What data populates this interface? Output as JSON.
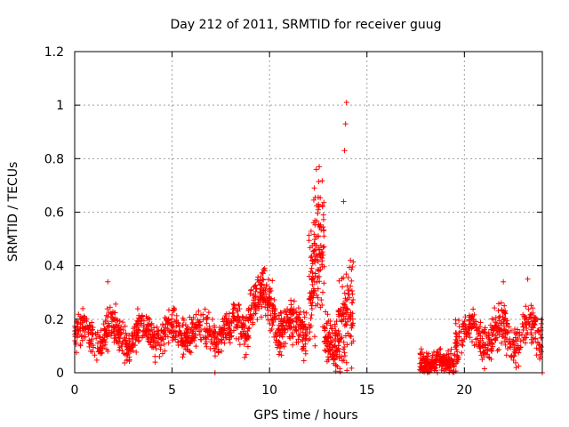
{
  "chart_data": {
    "type": "scatter",
    "title": "Day 212 of 2011, SRMTID for receiver guug",
    "xlabel": "GPS time / hours",
    "ylabel": "SRMTID / TECUs",
    "xlim": [
      0,
      24
    ],
    "ylim": [
      0,
      1.2
    ],
    "xticks": [
      0,
      5,
      10,
      15,
      20
    ],
    "xtick_labels": [
      "0",
      "5",
      "10",
      "15",
      "20"
    ],
    "yticks": [
      0,
      0.2,
      0.4,
      0.6,
      0.8,
      1,
      1.2
    ],
    "ytick_labels": [
      "0",
      "0.2",
      "0.4",
      "0.6",
      "0.8",
      "1",
      "1.2"
    ],
    "grid": true,
    "marker": "+",
    "color": "#ff0000",
    "series": [
      {
        "name": "SRMTID",
        "segments": [
          {
            "x0": 0.0,
            "x1": 3.0,
            "n": 260,
            "base": 0.14,
            "spread": 0.06,
            "amp": 0.04,
            "max": 0.34
          },
          {
            "x0": 3.0,
            "x1": 8.0,
            "n": 420,
            "base": 0.15,
            "spread": 0.06,
            "amp": 0.03,
            "max": 0.3
          },
          {
            "x0": 8.0,
            "x1": 9.0,
            "n": 90,
            "base": 0.19,
            "spread": 0.07,
            "amp": 0.03,
            "max": 0.3
          },
          {
            "x0": 9.0,
            "x1": 10.3,
            "n": 150,
            "base": 0.26,
            "spread": 0.08,
            "amp": 0.04,
            "max": 0.4
          },
          {
            "x0": 10.3,
            "x1": 12.0,
            "n": 170,
            "base": 0.17,
            "spread": 0.07,
            "amp": 0.03,
            "max": 0.3
          },
          {
            "x0": 12.0,
            "x1": 12.8,
            "n": 140,
            "base": 0.38,
            "spread": 0.22,
            "amp": 0.1,
            "max": 0.78
          },
          {
            "x0": 12.8,
            "x1": 13.5,
            "n": 90,
            "base": 0.12,
            "spread": 0.08,
            "amp": 0.03,
            "max": 0.3
          },
          {
            "x0": 13.5,
            "x1": 14.3,
            "n": 110,
            "base": 0.2,
            "spread": 0.18,
            "amp": 0.05,
            "max": 1.02
          },
          {
            "x0": 17.7,
            "x1": 19.5,
            "n": 200,
            "base": 0.04,
            "spread": 0.04,
            "amp": 0.01,
            "max": 0.14
          },
          {
            "x0": 19.5,
            "x1": 24.0,
            "n": 380,
            "base": 0.14,
            "spread": 0.07,
            "amp": 0.04,
            "max": 0.35
          }
        ],
        "peaks": [
          {
            "x": 13.95,
            "y": 1.01
          },
          {
            "x": 13.9,
            "y": 0.93
          },
          {
            "x": 13.85,
            "y": 0.83
          },
          {
            "x": 12.55,
            "y": 0.77
          },
          {
            "x": 12.4,
            "y": 0.76
          },
          {
            "x": 12.3,
            "y": 0.69
          },
          {
            "x": 13.8,
            "y": 0.64
          },
          {
            "x": 14.15,
            "y": 0.42
          },
          {
            "x": 9.75,
            "y": 0.39
          },
          {
            "x": 23.25,
            "y": 0.35
          },
          {
            "x": 1.7,
            "y": 0.34
          },
          {
            "x": 22.0,
            "y": 0.34
          },
          {
            "x": 7.2,
            "y": 0.0
          },
          {
            "x": 24.0,
            "y": 0.0
          }
        ]
      }
    ]
  }
}
